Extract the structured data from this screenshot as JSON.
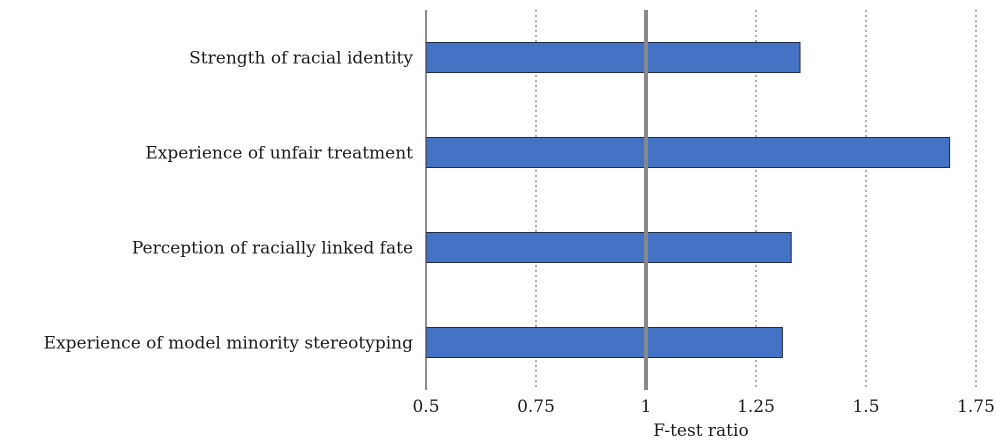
{
  "chart_data": {
    "type": "bar",
    "orientation": "horizontal",
    "categories": [
      "Strength of racial identity",
      "Experience of unfair treatment",
      "Perception of racially linked fate",
      "Experience of model minority stereotyping"
    ],
    "values": [
      1.35,
      1.69,
      1.33,
      1.31
    ],
    "xlabel": "F-test ratio",
    "ylabel": "",
    "xlim": [
      0.5,
      1.75
    ],
    "xticks": [
      0.5,
      0.75,
      1,
      1.25,
      1.5,
      1.75
    ],
    "xtick_labels": [
      "0.5",
      "0.75",
      "1",
      "1.25",
      "1.5",
      "1.75"
    ],
    "reference_line": 1,
    "grid": "vertical dotted",
    "colors": {
      "bar_fill": "#4472c4",
      "bar_stroke": "#1f2a44",
      "reference_line": "#888888",
      "grid": "#999999",
      "axis": "#444444"
    }
  }
}
